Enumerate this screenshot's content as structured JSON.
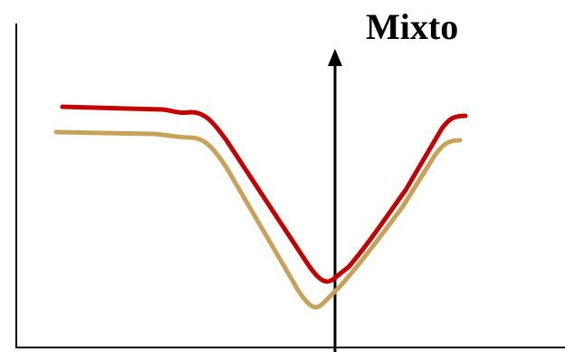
{
  "diagram": {
    "title": "Mixto",
    "colors": {
      "upper_curve": "#c40000",
      "lower_curve": "#c9a25a",
      "axes": "#000000",
      "background": "#ffffff"
    }
  }
}
